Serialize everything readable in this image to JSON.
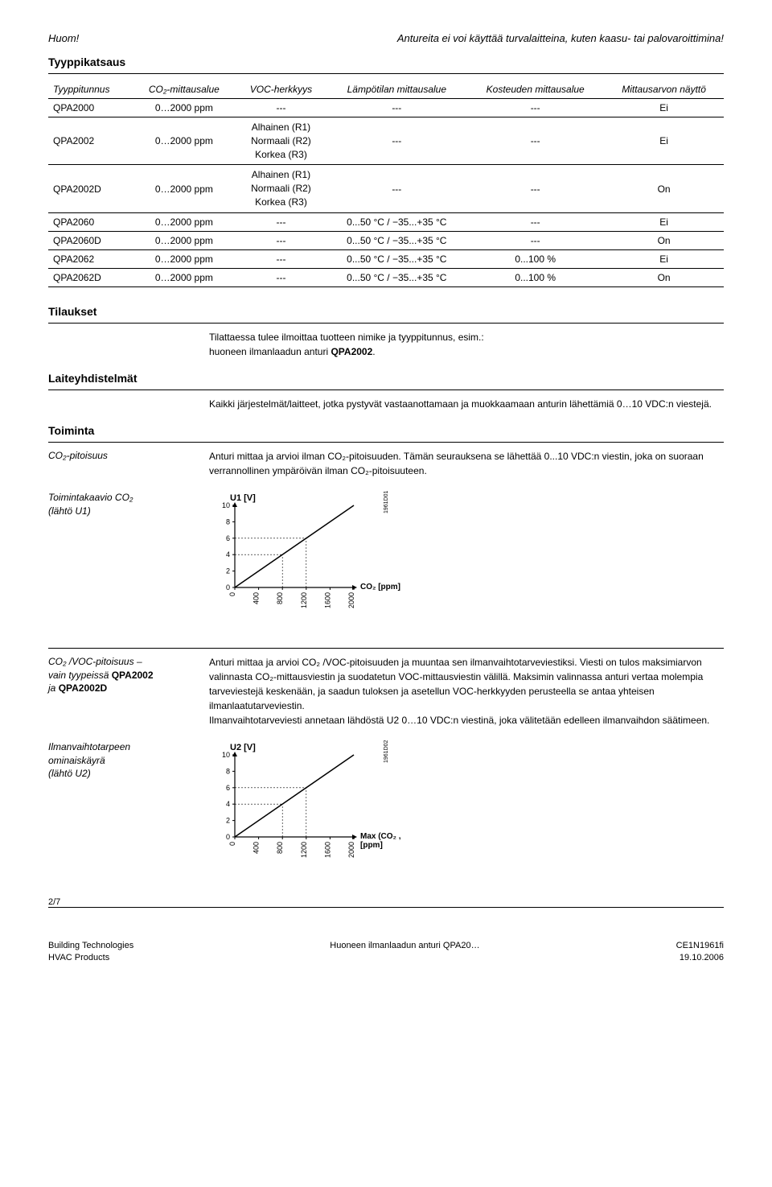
{
  "top": {
    "left": "Huom!",
    "right": "Antureita ei voi käyttää turvalaitteina, kuten kaasu- tai palovaroittimina!"
  },
  "typecast_title": "Tyyppikatsaus",
  "table": {
    "headers": [
      "Tyyppitunnus",
      "CO₂-mittausalue",
      "VOC-herkkyys",
      "Lämpötilan mittausalue",
      "Kosteuden mittausalue",
      "Mittausarvon näyttö"
    ],
    "rows": [
      [
        "QPA2000",
        "0…2000 ppm",
        "---",
        "---",
        "---",
        "Ei"
      ],
      [
        "QPA2002",
        "0…2000 ppm",
        "Alhainen (R1)\nNormaali (R2)\nKorkea (R3)",
        "---",
        "---",
        "Ei"
      ],
      [
        "QPA2002D",
        "0…2000 ppm",
        "Alhainen (R1)\nNormaali (R2)\nKorkea (R3)",
        "---",
        "---",
        "On"
      ],
      [
        "QPA2060",
        "0…2000 ppm",
        "---",
        "0...50 °C / −35...+35 °C",
        "---",
        "Ei"
      ],
      [
        "QPA2060D",
        "0…2000 ppm",
        "---",
        "0...50 °C / −35...+35 °C",
        "---",
        "On"
      ],
      [
        "QPA2062",
        "0…2000 ppm",
        "---",
        "0...50 °C / −35...+35 °C",
        "0...100 %",
        "Ei"
      ],
      [
        "QPA2062D",
        "0…2000 ppm",
        "---",
        "0...50 °C / −35...+35 °C",
        "0...100 %",
        "On"
      ]
    ]
  },
  "orders_title": "Tilaukset",
  "orders_body": "Tilattaessa tulee ilmoittaa tuotteen nimike ja tyyppitunnus, esim.:\nhuoneen ilmanlaadun anturi ",
  "orders_bold": "QPA2002",
  "combos_title": "Laiteyhdistelmät",
  "combos_body": "Kaikki järjestelmät/laitteet, jotka pystyvät vastaanottamaan ja muokkaamaan anturin lähettämiä 0…10 VDC:n viestejä.",
  "operation_title": "Toiminta",
  "co2_label": "CO₂-pitoisuus",
  "co2_body": "Anturi mittaa ja arvioi ilman CO₂-pitoisuuden. Tämän seurauksena se lähettää 0...10 VDC:n viestin, joka on suoraan verrannollinen ympäröivän ilman CO₂-pitoisuuteen.",
  "chart1_label": "Toimintakaavio CO₂\n(lähtö U1)",
  "co2voc_label": "CO₂ /VOC-pitoisuus –\nvain tyypeissä ",
  "co2voc_bold1": "QPA2002",
  "co2voc_mid": "\nja ",
  "co2voc_bold2": "QPA2002D",
  "co2voc_body": "Anturi mittaa ja arvioi CO₂ /VOC-pitoisuuden ja muuntaa sen ilmanvaihtotarveviestiksi. Viesti on tulos maksimiarvon valinnasta CO₂-mittausviestin ja suodatetun VOC-mittausviestin välillä. Maksimin valinnassa anturi vertaa molempia tarveviestejä keskenään, ja saadun tuloksen ja asetellun VOC-herkkyyden perusteella se antaa yhteisen ilmanlaatutarveviestin.\nIlmanvaihtotarveviesti annetaan lähdöstä U2 0…10 VDC:n viestinä, joka välitetään edelleen ilmanvaihdon säätimeen.",
  "chart2_label": "Ilmanvaihtotarpeen\nominaiskäyrä\n(lähtö U2)",
  "chart1": {
    "ylabel": "U1 [V]",
    "xlabel": "CO₂ [ppm]",
    "ytick": [
      "0",
      "2",
      "4",
      "6",
      "8",
      "10"
    ],
    "xtick": [
      "0",
      "400",
      "800",
      "1200",
      "1600",
      "2000"
    ],
    "side_label": "1961D01"
  },
  "chart2": {
    "ylabel": "U2 [V]",
    "xlabel": "Max (CO₂ , VOC)\n[ppm]",
    "ytick": [
      "0",
      "2",
      "4",
      "6",
      "8",
      "10"
    ],
    "xtick": [
      "0",
      "400",
      "800",
      "1200",
      "1600",
      "2000"
    ],
    "side_label": "1961D02"
  },
  "footer": {
    "page": "2/7",
    "left1": "Building Technologies",
    "left2": "HVAC Products",
    "center": "Huoneen ilmanlaadun anturi QPA20…",
    "right1": "CE1N1961fi",
    "right2": "19.10.2006"
  },
  "colors": {
    "line": "#000000",
    "dash": "#000000",
    "bg": "#ffffff"
  }
}
